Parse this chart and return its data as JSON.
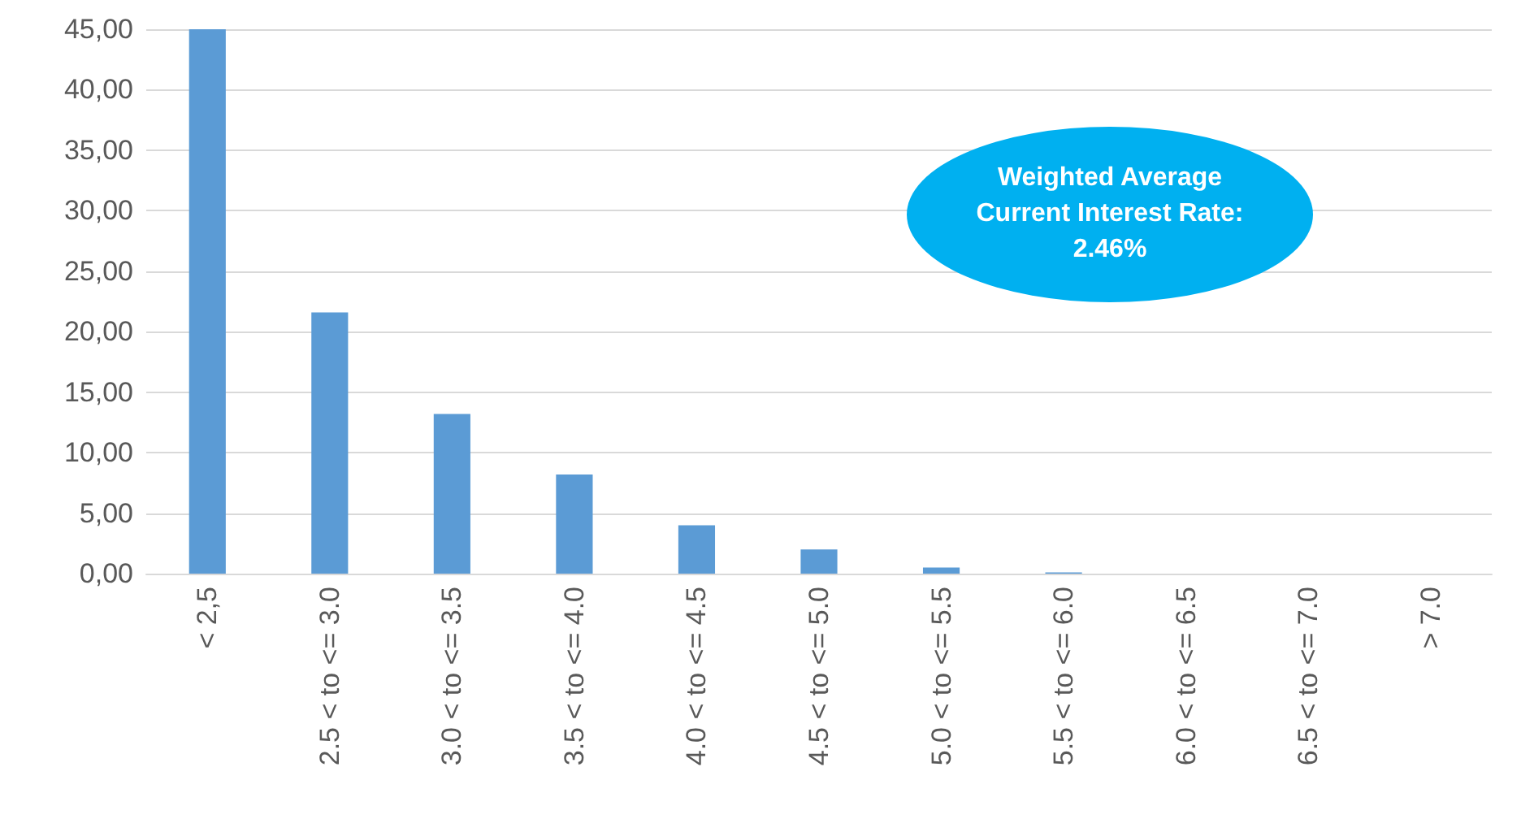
{
  "chart_data": {
    "type": "bar",
    "categories": [
      "< 2,5",
      "2.5 < to <= 3.0",
      "3.0 < to <= 3.5",
      "3.5 < to <= 4.0",
      "4.0 < to <= 4.5",
      "4.5 < to <= 5.0",
      "5.0 < to <= 5.5",
      "5.5 < to <= 6.0",
      "6.0 < to <= 6.5",
      "6.5 < to <= 7.0",
      "> 7.0"
    ],
    "values": [
      45.0,
      21.6,
      13.2,
      8.2,
      4.0,
      2.0,
      0.5,
      0.1,
      0,
      0,
      0
    ],
    "color": "#5b9bd5",
    "ylim": [
      0,
      45
    ],
    "yticks": [
      {
        "value": 0,
        "label": "0,00"
      },
      {
        "value": 5,
        "label": "5,00"
      },
      {
        "value": 10,
        "label": "10,00"
      },
      {
        "value": 15,
        "label": "15,00"
      },
      {
        "value": 20,
        "label": "20,00"
      },
      {
        "value": 25,
        "label": "25,00"
      },
      {
        "value": 30,
        "label": "30,00"
      },
      {
        "value": 35,
        "label": "35,00"
      },
      {
        "value": 40,
        "label": "40,00"
      },
      {
        "value": 45,
        "label": "45,00"
      }
    ],
    "grid": "y",
    "annotations": [
      "Weighted Average Current Interest Rate: 2.46%"
    ]
  }
}
